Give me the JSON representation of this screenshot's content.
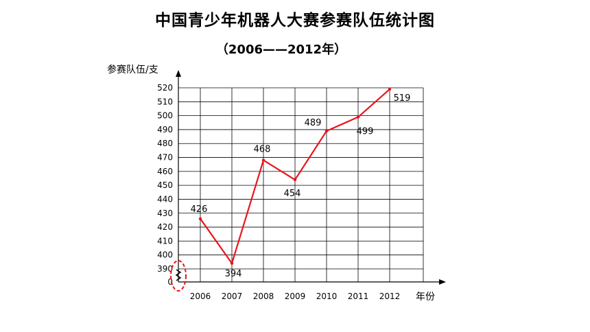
{
  "chart_data": {
    "type": "line",
    "title": "中国青少年机器人大赛参赛队伍统计图",
    "subtitle": "（2006——2012年）",
    "ylabel": "参赛队伍/支",
    "xlabel": "年份",
    "categories": [
      "2006",
      "2007",
      "2008",
      "2009",
      "2010",
      "2011",
      "2012"
    ],
    "series": [
      {
        "values": [
          426,
          394,
          468,
          454,
          489,
          499,
          519
        ]
      }
    ],
    "data_labels": [
      "426",
      "394",
      "468",
      "454",
      "489",
      "499",
      "519"
    ],
    "y_ticks": [
      "0",
      "390",
      "400",
      "410",
      "420",
      "430",
      "440",
      "450",
      "460",
      "470",
      "480",
      "490",
      "500",
      "510",
      "520"
    ],
    "ylim": [
      390,
      520
    ],
    "y_axis_break": true,
    "grid": true,
    "colors": {
      "line": "#e8141b",
      "break_marker": "#e8141b",
      "grid": "#000000"
    }
  }
}
